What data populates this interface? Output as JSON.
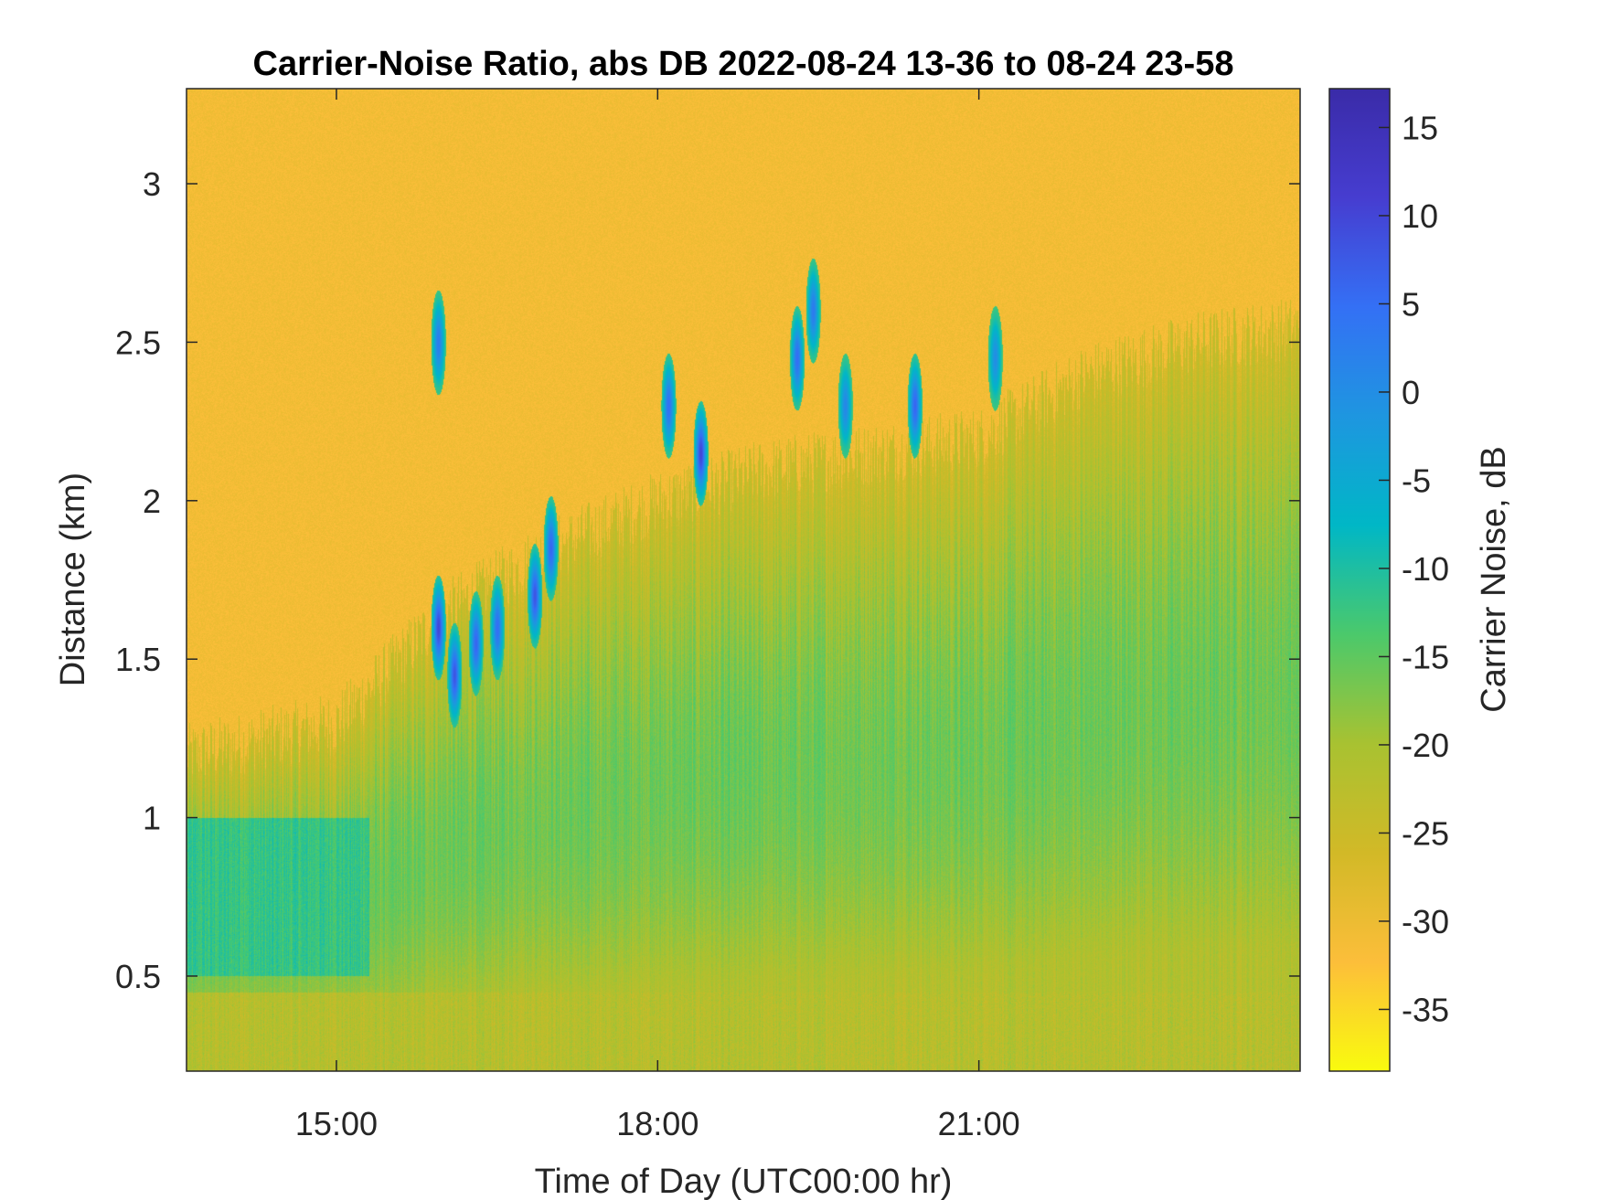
{
  "chart_data": {
    "type": "heatmap",
    "title": "Carrier-Noise Ratio, abs DB 2022-08-24 13-36 to 08-24 23-58",
    "xlabel": "Time of Day (UTC00:00 hr)",
    "ylabel": "Distance (km)",
    "colorbar_label": "Carrier Noise, dB",
    "xlim_hours": [
      13.6,
      24.0
    ],
    "ylim_km": [
      0.2,
      3.3
    ],
    "clim_db": [
      -38.5,
      17.2
    ],
    "x_ticks": [
      {
        "value": 15,
        "label": "15:00"
      },
      {
        "value": 18,
        "label": "18:00"
      },
      {
        "value": 21,
        "label": "21:00"
      }
    ],
    "y_ticks": [
      {
        "value": 0.5,
        "label": "0.5"
      },
      {
        "value": 1.0,
        "label": "1"
      },
      {
        "value": 1.5,
        "label": "1.5"
      },
      {
        "value": 2.0,
        "label": "2"
      },
      {
        "value": 2.5,
        "label": "2.5"
      },
      {
        "value": 3.0,
        "label": "3"
      }
    ],
    "colorbar_ticks": [
      {
        "value": 15,
        "label": "15"
      },
      {
        "value": 10,
        "label": "10"
      },
      {
        "value": 5,
        "label": "5"
      },
      {
        "value": 0,
        "label": "0"
      },
      {
        "value": -5,
        "label": "-5"
      },
      {
        "value": -10,
        "label": "-10"
      },
      {
        "value": -15,
        "label": "-15"
      },
      {
        "value": -20,
        "label": "-20"
      },
      {
        "value": -25,
        "label": "-25"
      },
      {
        "value": -30,
        "label": "-30"
      },
      {
        "value": -35,
        "label": "-35"
      }
    ],
    "colormap": "parula-reversed",
    "colormap_stops": [
      "#f9fb0e",
      "#fcbe3a",
      "#d2b927",
      "#a8c231",
      "#4bc96b",
      "#00b7c6",
      "#1e96e0",
      "#3470f5",
      "#463dd0",
      "#3a2ba8"
    ],
    "series": [
      {
        "name": "background_db",
        "description_hours": [
          13.6,
          15.0,
          16.0,
          17.0,
          18.0,
          19.0,
          20.0,
          21.0,
          22.0,
          23.0,
          24.0
        ],
        "signal_top_km": [
          1.2,
          1.3,
          1.65,
          1.85,
          2.0,
          2.1,
          2.15,
          2.2,
          2.4,
          2.5,
          2.55
        ]
      },
      {
        "name": "strong_returns",
        "patches": [
          {
            "t": 15.95,
            "d": 1.6,
            "db": 10
          },
          {
            "t": 16.1,
            "d": 1.45,
            "db": 8
          },
          {
            "t": 16.3,
            "d": 1.55,
            "db": 6
          },
          {
            "t": 16.5,
            "d": 1.6,
            "db": 5
          },
          {
            "t": 16.85,
            "d": 1.7,
            "db": 8
          },
          {
            "t": 17.0,
            "d": 1.85,
            "db": 6
          },
          {
            "t": 15.95,
            "d": 2.5,
            "db": 3
          },
          {
            "t": 18.1,
            "d": 2.3,
            "db": 5
          },
          {
            "t": 18.4,
            "d": 2.15,
            "db": 10
          },
          {
            "t": 19.3,
            "d": 2.45,
            "db": 5
          },
          {
            "t": 19.45,
            "d": 2.6,
            "db": 3
          },
          {
            "t": 19.75,
            "d": 2.3,
            "db": 1
          },
          {
            "t": 20.4,
            "d": 2.3,
            "db": 6
          },
          {
            "t": 21.15,
            "d": 2.45,
            "db": 0
          }
        ]
      }
    ]
  }
}
